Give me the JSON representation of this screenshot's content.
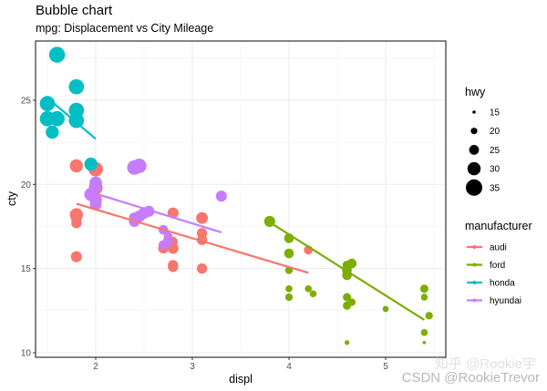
{
  "chart_data": {
    "type": "scatter",
    "subtype": "bubble",
    "title": "Bubble chart",
    "subtitle": "mpg: Displacement vs City Mileage",
    "xlabel": "displ",
    "ylabel": "cty",
    "xlim": [
      1.35,
      5.6
    ],
    "ylim": [
      9.7,
      28.5
    ],
    "x_ticks": [
      2,
      3,
      4,
      5
    ],
    "y_ticks": [
      10,
      15,
      20,
      25
    ],
    "grid": true,
    "size_legend": {
      "title": "hwy",
      "values": [
        15,
        20,
        25,
        30,
        35
      ]
    },
    "color_legend": {
      "title": "manufacturer",
      "entries": [
        {
          "name": "audi",
          "color": "#F8766D"
        },
        {
          "name": "ford",
          "color": "#7CAE00"
        },
        {
          "name": "honda",
          "color": "#00BFC4"
        },
        {
          "name": "hyundai",
          "color": "#C77CFF"
        }
      ]
    },
    "series": [
      {
        "name": "audi",
        "color": "#F8766D",
        "points": [
          [
            1.8,
            18.2,
            29
          ],
          [
            1.8,
            21.1,
            29
          ],
          [
            2.0,
            20.9,
            31
          ],
          [
            2.0,
            19.8,
            30
          ],
          [
            2.8,
            16.2,
            26
          ],
          [
            2.8,
            18.3,
            26
          ],
          [
            3.1,
            18.0,
            27
          ],
          [
            1.8,
            18.0,
            26
          ],
          [
            1.8,
            17.7,
            25
          ],
          [
            2.0,
            19.1,
            28
          ],
          [
            2.0,
            18.8,
            27
          ],
          [
            2.8,
            15.2,
            25
          ],
          [
            2.8,
            15.1,
            25
          ],
          [
            3.1,
            17.1,
            25
          ],
          [
            3.1,
            16.7,
            25
          ],
          [
            2.8,
            16.6,
            24
          ],
          [
            3.1,
            15.0,
            25
          ],
          [
            4.2,
            16.1,
            23
          ],
          [
            1.8,
            15.7,
            26
          ],
          [
            2.7,
            16.2,
            25
          ],
          [
            2.75,
            16.7,
            24
          ]
        ],
        "trend": [
          [
            1.8,
            18.85
          ],
          [
            4.2,
            14.75
          ]
        ]
      },
      {
        "name": "ford",
        "color": "#7CAE00",
        "points": [
          [
            3.8,
            17.8,
            26
          ],
          [
            4.0,
            16.8,
            24
          ],
          [
            4.0,
            15.9,
            24
          ],
          [
            4.0,
            14.9,
            21
          ],
          [
            4.0,
            13.8,
            20
          ],
          [
            4.0,
            13.3,
            21
          ],
          [
            4.6,
            15.2,
            23
          ],
          [
            4.6,
            14.9,
            24
          ],
          [
            4.6,
            14.6,
            24
          ],
          [
            4.65,
            15.3,
            24
          ],
          [
            4.6,
            13.3,
            22
          ],
          [
            4.6,
            12.8,
            22
          ],
          [
            4.65,
            13.0,
            21
          ],
          [
            4.6,
            10.6,
            17
          ],
          [
            4.6,
            15.0,
            23
          ],
          [
            4.2,
            13.8,
            20
          ],
          [
            4.25,
            13.5,
            20
          ],
          [
            5.0,
            12.6,
            19
          ],
          [
            5.4,
            13.8,
            22
          ],
          [
            5.4,
            13.3,
            20
          ],
          [
            5.45,
            12.2,
            21
          ],
          [
            5.4,
            11.2,
            20
          ],
          [
            5.4,
            10.6,
            15
          ]
        ],
        "trend": [
          [
            3.8,
            17.75
          ],
          [
            5.4,
            11.95
          ]
        ]
      },
      {
        "name": "honda",
        "color": "#00BFC4",
        "points": [
          [
            1.6,
            27.7,
            33
          ],
          [
            1.8,
            25.8,
            32
          ],
          [
            1.5,
            24.8,
            32
          ],
          [
            1.5,
            23.9,
            32
          ],
          [
            1.6,
            23.9,
            32
          ],
          [
            1.8,
            23.8,
            32
          ],
          [
            1.8,
            24.4,
            32
          ],
          [
            1.55,
            23.1,
            29
          ],
          [
            1.95,
            21.2,
            29
          ]
        ],
        "trend": [
          [
            1.55,
            24.9
          ],
          [
            2.0,
            22.7
          ]
        ]
      },
      {
        "name": "hyundai",
        "color": "#C77CFF",
        "points": [
          [
            2.4,
            21.0,
            31
          ],
          [
            2.45,
            21.1,
            31
          ],
          [
            2.0,
            20.1,
            28
          ],
          [
            2.0,
            19.9,
            28
          ],
          [
            1.95,
            19.4,
            29
          ],
          [
            2.0,
            19.0,
            27
          ],
          [
            2.0,
            18.8,
            26
          ],
          [
            2.4,
            17.8,
            26
          ],
          [
            2.45,
            18.1,
            27
          ],
          [
            2.5,
            18.3,
            27
          ],
          [
            2.55,
            18.4,
            26
          ],
          [
            2.7,
            17.3,
            24
          ],
          [
            2.75,
            16.6,
            24
          ],
          [
            2.7,
            16.4,
            24
          ],
          [
            2.75,
            16.9,
            23
          ],
          [
            3.3,
            19.3,
            26
          ],
          [
            2.4,
            18.0,
            26
          ]
        ],
        "trend": [
          [
            2.0,
            19.45
          ],
          [
            3.3,
            17.15
          ]
        ]
      }
    ]
  },
  "watermark": {
    "line1": "知乎 @Rookie宇",
    "line2": "CSDN @RookieTrevor"
  }
}
